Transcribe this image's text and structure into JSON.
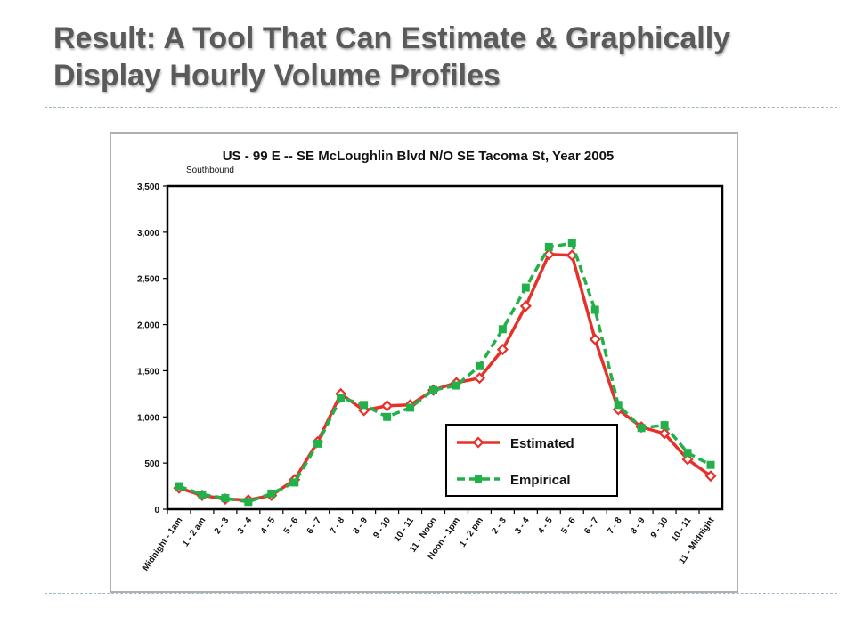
{
  "slide": {
    "title_line1": "Result:  A Tool That Can Estimate & Graphically",
    "title_line2": "Display Hourly Volume Profiles"
  },
  "chart_data": {
    "type": "line",
    "title": "US - 99 E  -- SE McLoughlin Blvd  N/O  SE Tacoma  St,  Year 2005",
    "subtitle": "Southbound",
    "xlabel": "",
    "ylabel": "",
    "ylim": [
      0,
      3500
    ],
    "yticks": [
      "0",
      "500",
      "1,000",
      "1,500",
      "2,000",
      "2,500",
      "3,000",
      "3,500"
    ],
    "categories": [
      "Midnight - 1am",
      "1 - 2 am",
      "2 - 3",
      "3 - 4",
      "4 - 5",
      "5 - 6",
      "6 - 7",
      "7 - 8",
      "8 - 9",
      "9 - 10",
      "10 - 11",
      "11 - Noon",
      "Noon - 1pm",
      "1 - 2 pm",
      "2 - 3",
      "3 - 4",
      "4 - 5",
      "5 - 6",
      "6 - 7",
      "7 - 8",
      "8 - 9",
      "9 - 10",
      "10 - 11",
      "11 - Midnight"
    ],
    "series": [
      {
        "name": "Estimated",
        "color": "#e8302a",
        "marker": "diamond",
        "dash": "solid",
        "values": [
          230,
          150,
          110,
          100,
          150,
          320,
          730,
          1250,
          1070,
          1120,
          1130,
          1290,
          1370,
          1420,
          1730,
          2200,
          2760,
          2750,
          1840,
          1080,
          890,
          820,
          540,
          360
        ]
      },
      {
        "name": "Empirical",
        "color": "#22b04a",
        "marker": "square",
        "dash": "dashed",
        "values": [
          250,
          160,
          120,
          80,
          170,
          290,
          710,
          1210,
          1130,
          1000,
          1100,
          1290,
          1340,
          1550,
          1950,
          2400,
          2840,
          2880,
          2160,
          1130,
          880,
          910,
          610,
          480
        ]
      }
    ],
    "grid": false,
    "legend_position": "bottom-right"
  }
}
